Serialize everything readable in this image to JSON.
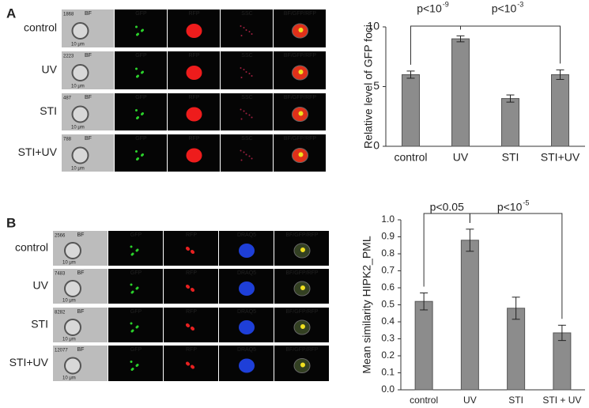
{
  "panels": [
    {
      "label": "A",
      "columns": [
        "BF",
        "GFP",
        "RFP",
        "SSC",
        "BF/GFP/RFP"
      ],
      "scale": "10 μm",
      "rows": [
        {
          "name": "control",
          "count": 1868
        },
        {
          "name": "UV",
          "count": 2223
        },
        {
          "name": "STI",
          "count": 487
        },
        {
          "name": "STI+UV",
          "count": 788
        }
      ]
    },
    {
      "label": "B",
      "columns": [
        "BF",
        "GFP",
        "RFP",
        "DRAQ5",
        "BF/GFP/RFP"
      ],
      "scale": "10 μm",
      "rows": [
        {
          "name": "control",
          "count": 2566
        },
        {
          "name": "UV",
          "count": 7483
        },
        {
          "name": "STI",
          "count": 8282
        },
        {
          "name": "STI+UV",
          "count": 12077
        }
      ]
    }
  ],
  "chart_data": [
    {
      "type": "bar",
      "y_label": "Relative level of GFP foci",
      "categories": [
        "control",
        "UV",
        "STI",
        "STI+UV"
      ],
      "values": [
        6.0,
        9.0,
        4.0,
        6.0
      ],
      "errors": [
        0.3,
        0.25,
        0.3,
        0.4
      ],
      "color": "#8c8c8c",
      "ylim": [
        0,
        10
      ],
      "yticks": [
        0,
        5,
        10
      ],
      "annotations": [
        {
          "text": "p<10",
          "sup": "-9"
        },
        {
          "text": "p<10",
          "sup": "-3"
        }
      ]
    },
    {
      "type": "bar",
      "y_label": "Mean similarity HIPK2_PML",
      "categories": [
        "control",
        "UV",
        "STI",
        "STI + UV"
      ],
      "values": [
        0.52,
        0.88,
        0.48,
        0.335
      ],
      "errors": [
        0.05,
        0.065,
        0.065,
        0.045
      ],
      "color": "#8c8c8c",
      "ylim": [
        0,
        1
      ],
      "yticks": [
        {
          "value": 0,
          "label": "0.0"
        },
        0.1,
        0.2,
        0.3,
        0.4,
        0.5,
        0.6,
        0.7,
        0.8,
        0.9,
        {
          "value": 1,
          "label": "1.0"
        }
      ],
      "annotations": [
        {
          "text": "p<0.05"
        },
        {
          "text": "p<10",
          "sup": "-5"
        }
      ]
    }
  ]
}
